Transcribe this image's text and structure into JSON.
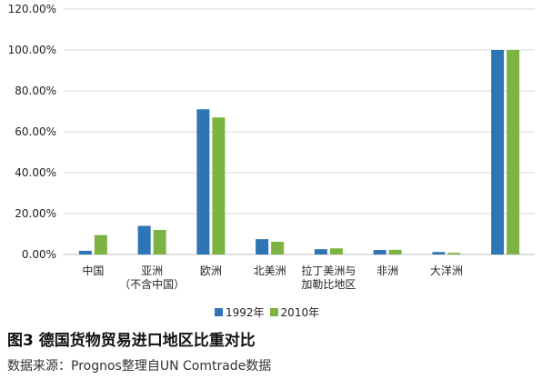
{
  "chart_data": {
    "type": "bar",
    "categories": [
      [
        "中国"
      ],
      [
        "亚洲",
        "（不含中国）"
      ],
      [
        "欧洲"
      ],
      [
        "北美洲"
      ],
      [
        "拉丁美洲与",
        "加勒比地区"
      ],
      [
        "非洲"
      ],
      [
        "大洋洲"
      ],
      [
        ""
      ]
    ],
    "series": [
      {
        "name": "1992年",
        "color": "#2E75B6",
        "values": [
          1.8,
          14.0,
          71.0,
          7.5,
          2.6,
          2.2,
          1.2,
          100.0
        ]
      },
      {
        "name": "2010年",
        "color": "#7CB342",
        "values": [
          9.5,
          12.0,
          67.0,
          6.2,
          3.0,
          2.3,
          0.8,
          100.0
        ]
      }
    ],
    "yticks": [
      "0.00%",
      "20.00%",
      "40.00%",
      "60.00%",
      "80.00%",
      "100.00%",
      "120.00%"
    ],
    "ylim": [
      0,
      120
    ],
    "grid": true,
    "legend_position": "bottom"
  },
  "caption": "图3  德国货物贸易进口地区比重对比",
  "source": "数据来源：Prognos整理自UN Comtrade数据"
}
